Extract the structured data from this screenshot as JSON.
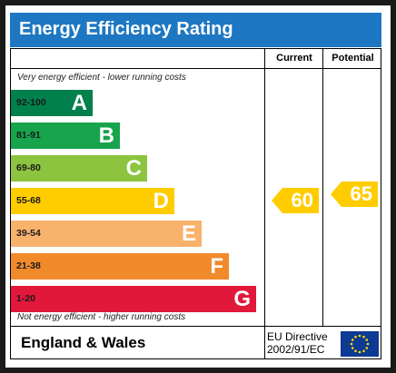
{
  "title": "Energy Efficiency Rating",
  "columns": {
    "current": "Current",
    "potential": "Potential"
  },
  "top_caption": "Very energy efficient - lower running costs",
  "bottom_caption": "Not energy efficient - higher running costs",
  "footer": {
    "country": "England & Wales",
    "directive_line1": "EU Directive",
    "directive_line2": "2002/91/EC"
  },
  "colors": {
    "title_bar": "#1e77c2",
    "A": "#00804a",
    "B": "#17a44c",
    "C": "#8cc43f",
    "D": "#ffcc00",
    "E": "#f8b26c",
    "F": "#f18a2a",
    "G": "#e2183b",
    "indicator": "#ffcc00",
    "flag": "#0d3a93",
    "flag_stars": "#ffdd00"
  },
  "chart_data": {
    "type": "bar",
    "categories": [
      "A",
      "B",
      "C",
      "D",
      "E",
      "F",
      "G"
    ],
    "ranges": [
      "92-100",
      "81-91",
      "69-80",
      "55-68",
      "39-54",
      "21-38",
      "1-20"
    ],
    "current": {
      "value": 60,
      "band": "D"
    },
    "potential": {
      "value": 65,
      "band": "D"
    }
  }
}
